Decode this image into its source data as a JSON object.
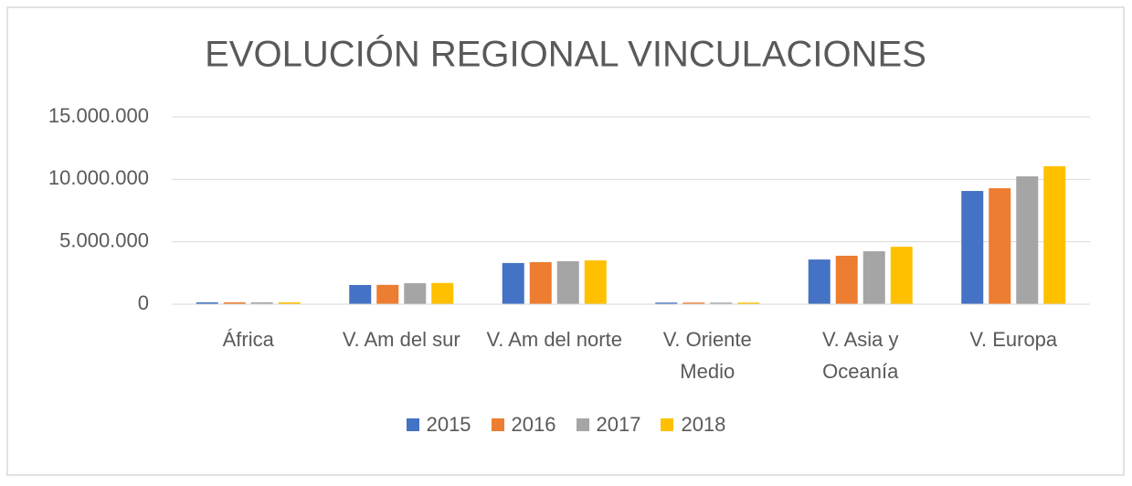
{
  "chart_data": {
    "type": "bar",
    "title": "EVOLUCIÓN REGIONAL VINCULACIONES",
    "categories": [
      "África",
      "V. Am del sur",
      "V. Am del norte",
      "V. Oriente Medio",
      "V. Asia y Oceanía",
      "V. Europa"
    ],
    "series": [
      {
        "name": "2015",
        "color": "#4472c4",
        "values": [
          150000,
          1540000,
          3300000,
          130000,
          3580000,
          9070000
        ]
      },
      {
        "name": "2016",
        "color": "#ed7d31",
        "values": [
          150000,
          1550000,
          3370000,
          130000,
          3880000,
          9290000
        ]
      },
      {
        "name": "2017",
        "color": "#a5a5a5",
        "values": [
          150000,
          1680000,
          3440000,
          130000,
          4240000,
          10240000
        ]
      },
      {
        "name": "2018",
        "color": "#ffc000",
        "values": [
          150000,
          1700000,
          3510000,
          130000,
          4600000,
          11050000
        ]
      }
    ],
    "ylim": [
      0,
      15000000
    ],
    "yticks": [
      0,
      {
        "value": 5000000,
        "label": "5.000.000"
      },
      {
        "value": 10000000,
        "label": "10.000.000"
      },
      {
        "value": 15000000,
        "label": "15.000.000"
      }
    ],
    "grid": true,
    "legend": "bottom"
  }
}
